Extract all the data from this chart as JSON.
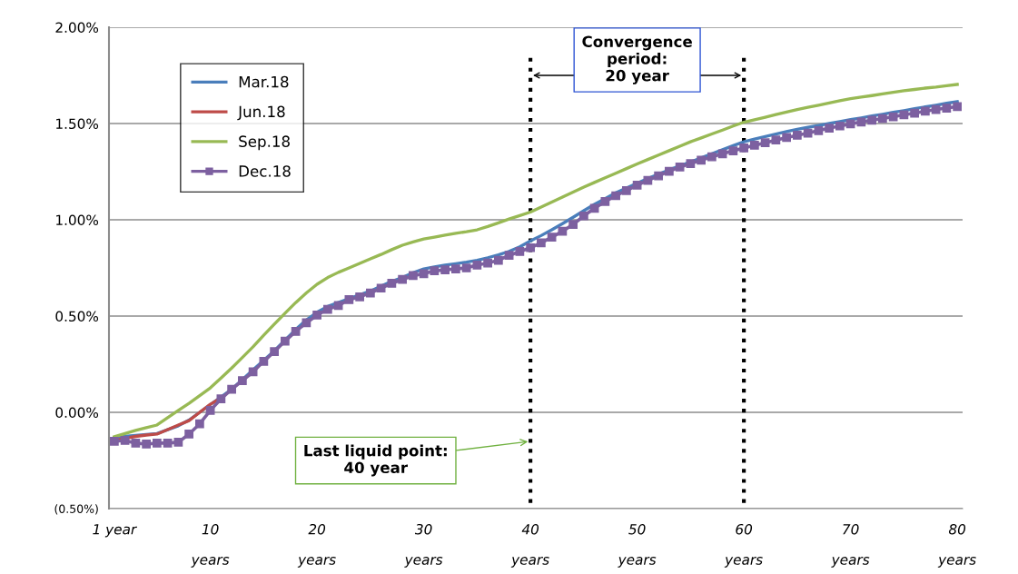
{
  "chart_data": {
    "type": "line",
    "categories": [
      "1 year",
      null,
      null,
      null,
      null,
      null,
      null,
      null,
      null,
      "10 years",
      null,
      null,
      null,
      null,
      null,
      null,
      null,
      null,
      null,
      "20 years",
      null,
      null,
      null,
      null,
      null,
      null,
      null,
      null,
      null,
      "30 years",
      null,
      null,
      null,
      null,
      null,
      null,
      null,
      null,
      null,
      "40 years",
      null,
      null,
      null,
      null,
      null,
      null,
      null,
      null,
      null,
      "50 years",
      null,
      null,
      null,
      null,
      null,
      null,
      null,
      null,
      null,
      "60 years",
      null,
      null,
      null,
      null,
      null,
      null,
      null,
      null,
      null,
      "70 years",
      null,
      null,
      null,
      null,
      null,
      null,
      null,
      null,
      null,
      "80 years"
    ],
    "ylim": [
      -0.5,
      2.0
    ],
    "yticks": [
      {
        "value": -0.5,
        "label": "(0.50%)"
      },
      {
        "value": 0,
        "label": "0.00%"
      },
      {
        "value": 0.5,
        "label": "0.50%"
      },
      {
        "value": 1.0,
        "label": "1.00%"
      },
      {
        "value": 1.5,
        "label": "1.50%"
      },
      {
        "value": 2.0,
        "label": "2.00%"
      }
    ],
    "grid": "y",
    "legend": "top left",
    "series": [
      {
        "name": "Mar.18",
        "color": "#4a7ebb",
        "marker": "none",
        "values": [
          -0.13,
          -0.125,
          -0.12,
          -0.115,
          -0.11,
          -0.09,
          -0.07,
          -0.04,
          0.0,
          0.04,
          0.08,
          0.12,
          0.17,
          0.22,
          0.27,
          0.32,
          0.375,
          0.43,
          0.48,
          0.52,
          0.55,
          0.57,
          0.59,
          0.61,
          0.63,
          0.655,
          0.68,
          0.7,
          0.725,
          0.745,
          0.755,
          0.765,
          0.772,
          0.78,
          0.79,
          0.803,
          0.818,
          0.836,
          0.86,
          0.89,
          0.918,
          0.948,
          0.98,
          1.013,
          1.047,
          1.08,
          1.11,
          1.14,
          1.165,
          1.19,
          1.214,
          1.237,
          1.259,
          1.28,
          1.3,
          1.322,
          1.343,
          1.364,
          1.385,
          1.405,
          1.419,
          1.432,
          1.445,
          1.458,
          1.47,
          1.48,
          1.49,
          1.5,
          1.51,
          1.52,
          1.529,
          1.539,
          1.548,
          1.558,
          1.567,
          1.577,
          1.586,
          1.595,
          1.605,
          1.614
        ]
      },
      {
        "name": "Jun.18",
        "color": "#be4b48",
        "marker": "none",
        "values": [
          -0.146,
          -0.135,
          -0.125,
          -0.118,
          -0.113,
          -0.09,
          -0.066,
          -0.043,
          0.0,
          0.042,
          0.075,
          null,
          null,
          null,
          null,
          null,
          null,
          null,
          null,
          null,
          null,
          null,
          null,
          null,
          null,
          null,
          null,
          null,
          null,
          null,
          null,
          null,
          null,
          null,
          null,
          null,
          null,
          null,
          null,
          null,
          null,
          null,
          null,
          null,
          null,
          null,
          null,
          null,
          null,
          null,
          null,
          null,
          null,
          null,
          null,
          null,
          null,
          null,
          null,
          null,
          null,
          null,
          null,
          null,
          null,
          null,
          null,
          null,
          null,
          null,
          null,
          null,
          null,
          null,
          null,
          null,
          null,
          null,
          null,
          null
        ]
      },
      {
        "name": "Sep.18",
        "color": "#98b954",
        "marker": "none",
        "values": [
          -0.127,
          -0.11,
          -0.094,
          -0.08,
          -0.066,
          -0.028,
          0.01,
          0.047,
          0.087,
          0.127,
          0.178,
          0.23,
          0.285,
          0.34,
          0.4,
          0.458,
          0.515,
          0.57,
          0.62,
          0.665,
          0.7,
          0.727,
          0.75,
          0.774,
          0.797,
          0.82,
          0.845,
          0.868,
          0.885,
          0.9,
          0.91,
          0.92,
          0.93,
          0.938,
          0.948,
          0.965,
          0.984,
          1.004,
          1.022,
          1.04,
          1.066,
          1.092,
          1.118,
          1.144,
          1.17,
          1.194,
          1.218,
          1.242,
          1.266,
          1.29,
          1.313,
          1.336,
          1.359,
          1.382,
          1.405,
          1.425,
          1.446,
          1.466,
          1.487,
          1.507,
          1.52,
          1.533,
          1.547,
          1.56,
          1.573,
          1.584,
          1.595,
          1.607,
          1.618,
          1.629,
          1.637,
          1.645,
          1.654,
          1.662,
          1.67,
          1.677,
          1.684,
          1.689,
          1.696,
          1.703
        ]
      },
      {
        "name": "Dec.18",
        "color": "#7d60a0",
        "marker": "square",
        "values": [
          -0.15,
          -0.146,
          -0.16,
          -0.165,
          -0.16,
          -0.16,
          -0.155,
          -0.113,
          -0.06,
          0.01,
          0.07,
          0.12,
          0.165,
          0.21,
          0.265,
          0.315,
          0.37,
          0.42,
          0.465,
          0.505,
          0.535,
          0.555,
          0.585,
          0.6,
          0.62,
          0.645,
          0.67,
          0.69,
          0.71,
          0.72,
          0.735,
          0.74,
          0.745,
          0.75,
          0.765,
          0.775,
          0.79,
          0.815,
          0.835,
          0.855,
          0.88,
          0.91,
          0.94,
          0.976,
          1.02,
          1.06,
          1.095,
          1.125,
          1.152,
          1.18,
          1.205,
          1.228,
          1.252,
          1.274,
          1.292,
          1.31,
          1.327,
          1.343,
          1.358,
          1.373,
          1.387,
          1.4,
          1.414,
          1.427,
          1.439,
          1.45,
          1.463,
          1.476,
          1.487,
          1.498,
          1.508,
          1.517,
          1.526,
          1.535,
          1.545,
          1.554,
          1.564,
          1.573,
          1.58,
          1.588
        ]
      }
    ],
    "ref_lines": [
      {
        "axis": "x",
        "value": "40 years",
        "color": "#000000",
        "line_style": "dotted"
      },
      {
        "axis": "x",
        "value": "60 years",
        "color": "#000000",
        "line_style": "dotted"
      }
    ],
    "annotations": [
      "Convergence\nperiod:\n20 year",
      {
        "text": "Last liquid point:\n40 year",
        "x": "40 years",
        "y": -0.15
      }
    ]
  }
}
